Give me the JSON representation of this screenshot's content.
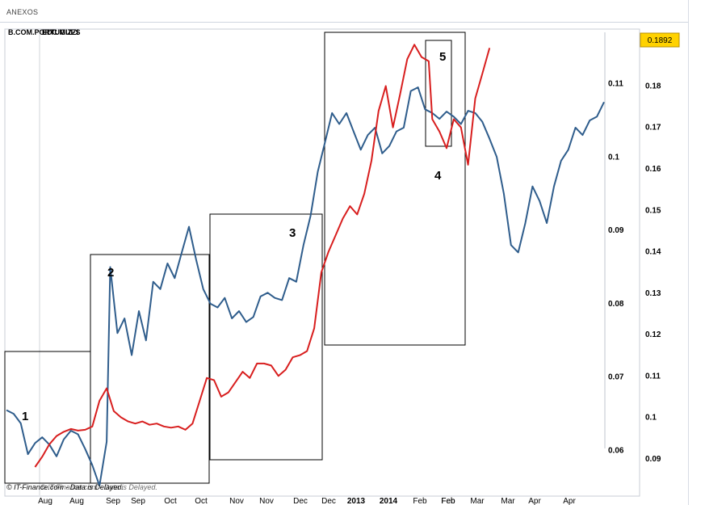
{
  "header": {
    "title": "ANEXOS"
  },
  "chart_data": {
    "type": "line",
    "title": "B.COM.PORTUGUES",
    "title_overlay": "EDC MIZZI",
    "footer": "© IT-Finance.com - Data is Delayed.",
    "current_value_badge": "0.1892",
    "x_ticks": [
      "Aug",
      "Aug",
      "Sep",
      "Sep",
      "Oct",
      "Oct",
      "Nov",
      "Nov",
      "Dec",
      "Dec",
      "2013",
      "2014",
      "Feb",
      "Feb",
      "Feb",
      "Mar",
      "Mar",
      "Apr",
      "Apr"
    ],
    "left_axis": {
      "ticks": [
        "0.11",
        "0.1",
        "0.09",
        "0.08",
        "0.07",
        "0.06"
      ],
      "range": [
        0.054,
        0.117
      ]
    },
    "right_axis": {
      "ticks": [
        "0.18",
        "0.17",
        "0.16",
        "0.15",
        "0.14",
        "0.13",
        "0.12",
        "0.11",
        "0.1",
        "0.09"
      ],
      "range": [
        0.088,
        0.192
      ]
    },
    "annotations": [
      {
        "label": "1"
      },
      {
        "label": "2"
      },
      {
        "label": "3"
      },
      {
        "label": "4"
      },
      {
        "label": "5"
      }
    ],
    "series": [
      {
        "color": "#2f5d8c",
        "axis": "left",
        "values": [
          [
            0.0,
            0.0655
          ],
          [
            2.0,
            0.065
          ],
          [
            4.0,
            0.0637
          ],
          [
            6.0,
            0.0595
          ],
          [
            8.0,
            0.061
          ],
          [
            10.0,
            0.0618
          ],
          [
            12.0,
            0.0608
          ],
          [
            14.0,
            0.0592
          ],
          [
            16.0,
            0.0615
          ],
          [
            18.0,
            0.0627
          ],
          [
            20.0,
            0.0622
          ],
          [
            22.0,
            0.0602
          ],
          [
            24.0,
            0.058
          ],
          [
            26.0,
            0.0552
          ],
          [
            28.0,
            0.0612
          ],
          [
            29.0,
            0.085
          ],
          [
            31.0,
            0.076
          ],
          [
            33.0,
            0.078
          ],
          [
            35.0,
            0.073
          ],
          [
            37.0,
            0.079
          ],
          [
            39.0,
            0.075
          ],
          [
            41.0,
            0.083
          ],
          [
            43.0,
            0.082
          ],
          [
            45.0,
            0.0855
          ],
          [
            47.0,
            0.0835
          ],
          [
            49.0,
            0.087
          ],
          [
            51.0,
            0.0905
          ],
          [
            53.0,
            0.086
          ],
          [
            55.0,
            0.082
          ],
          [
            57.0,
            0.08
          ],
          [
            59.0,
            0.0795
          ],
          [
            61.0,
            0.0808
          ],
          [
            63.0,
            0.078
          ],
          [
            65.0,
            0.079
          ],
          [
            67.0,
            0.0775
          ],
          [
            69.0,
            0.0782
          ],
          [
            71.0,
            0.081
          ],
          [
            73.0,
            0.0815
          ],
          [
            75.0,
            0.0808
          ],
          [
            77.0,
            0.0805
          ],
          [
            79.0,
            0.0835
          ],
          [
            81.0,
            0.083
          ],
          [
            83.0,
            0.088
          ],
          [
            85.0,
            0.092
          ],
          [
            87.0,
            0.098
          ],
          [
            89.0,
            0.102
          ],
          [
            91.0,
            0.106
          ],
          [
            93.0,
            0.1045
          ],
          [
            95.0,
            0.106
          ],
          [
            97.0,
            0.1035
          ],
          [
            99.0,
            0.101
          ],
          [
            101.0,
            0.103
          ],
          [
            103.0,
            0.104
          ],
          [
            105.0,
            0.1005
          ],
          [
            107.0,
            0.1015
          ],
          [
            109.0,
            0.1035
          ],
          [
            111.0,
            0.104
          ],
          [
            113.0,
            0.109
          ],
          [
            115.0,
            0.1095
          ],
          [
            117.0,
            0.1065
          ],
          [
            119.0,
            0.106
          ],
          [
            121.0,
            0.1052
          ],
          [
            123.0,
            0.1062
          ],
          [
            125.0,
            0.1055
          ],
          [
            127.0,
            0.1045
          ],
          [
            129.0,
            0.1063
          ],
          [
            131.0,
            0.106
          ],
          [
            133.0,
            0.1048
          ],
          [
            135.0,
            0.1025
          ],
          [
            137.0,
            0.1
          ],
          [
            139.0,
            0.095
          ],
          [
            141.0,
            0.088
          ],
          [
            143.0,
            0.087
          ],
          [
            145.0,
            0.091
          ],
          [
            147.0,
            0.096
          ],
          [
            149.0,
            0.094
          ],
          [
            151.0,
            0.091
          ],
          [
            153.0,
            0.096
          ],
          [
            155.0,
            0.0995
          ],
          [
            157.0,
            0.101
          ],
          [
            159.0,
            0.104
          ],
          [
            161.0,
            0.103
          ],
          [
            163.0,
            0.105
          ],
          [
            165.0,
            0.1055
          ],
          [
            167.0,
            0.1075
          ]
        ]
      },
      {
        "color": "#d81e1e",
        "axis": "right",
        "values": [
          [
            8.0,
            0.088
          ],
          [
            10.0,
            0.0905
          ],
          [
            12.0,
            0.0935
          ],
          [
            14.0,
            0.0955
          ],
          [
            16.0,
            0.0965
          ],
          [
            18.0,
            0.0972
          ],
          [
            20.0,
            0.0968
          ],
          [
            22.0,
            0.097
          ],
          [
            24.0,
            0.0978
          ],
          [
            26.0,
            0.104
          ],
          [
            28.0,
            0.107
          ],
          [
            30.0,
            0.1015
          ],
          [
            32.0,
            0.1
          ],
          [
            34.0,
            0.099
          ],
          [
            36.0,
            0.0985
          ],
          [
            38.0,
            0.099
          ],
          [
            40.0,
            0.0982
          ],
          [
            42.0,
            0.0985
          ],
          [
            44.0,
            0.0978
          ],
          [
            46.0,
            0.0975
          ],
          [
            48.0,
            0.0978
          ],
          [
            50.0,
            0.097
          ],
          [
            52.0,
            0.0985
          ],
          [
            54.0,
            0.104
          ],
          [
            56.0,
            0.1095
          ],
          [
            58.0,
            0.109
          ],
          [
            60.0,
            0.105
          ],
          [
            62.0,
            0.106
          ],
          [
            64.0,
            0.1085
          ],
          [
            66.0,
            0.111
          ],
          [
            68.0,
            0.1095
          ],
          [
            70.0,
            0.113
          ],
          [
            72.0,
            0.113
          ],
          [
            74.0,
            0.1125
          ],
          [
            76.0,
            0.11
          ],
          [
            78.0,
            0.1115
          ],
          [
            80.0,
            0.1145
          ],
          [
            82.0,
            0.115
          ],
          [
            84.0,
            0.116
          ],
          [
            86.0,
            0.1215
          ],
          [
            88.0,
            0.135
          ],
          [
            90.0,
            0.14
          ],
          [
            92.0,
            0.144
          ],
          [
            94.0,
            0.148
          ],
          [
            96.0,
            0.151
          ],
          [
            98.0,
            0.149
          ],
          [
            100.0,
            0.154
          ],
          [
            102.0,
            0.162
          ],
          [
            104.0,
            0.174
          ],
          [
            106.0,
            0.18
          ],
          [
            108.0,
            0.17
          ],
          [
            110.0,
            0.178
          ],
          [
            112.0,
            0.1865
          ],
          [
            114.0,
            0.19
          ],
          [
            116.0,
            0.187
          ],
          [
            118.0,
            0.186
          ],
          [
            119.0,
            0.172
          ],
          [
            121.0,
            0.169
          ],
          [
            123.0,
            0.165
          ],
          [
            125.0,
            0.172
          ],
          [
            127.0,
            0.17
          ],
          [
            129.0,
            0.161
          ],
          [
            131.0,
            0.177
          ],
          [
            133.0,
            0.183
          ],
          [
            135.0,
            0.1892
          ]
        ]
      }
    ]
  }
}
